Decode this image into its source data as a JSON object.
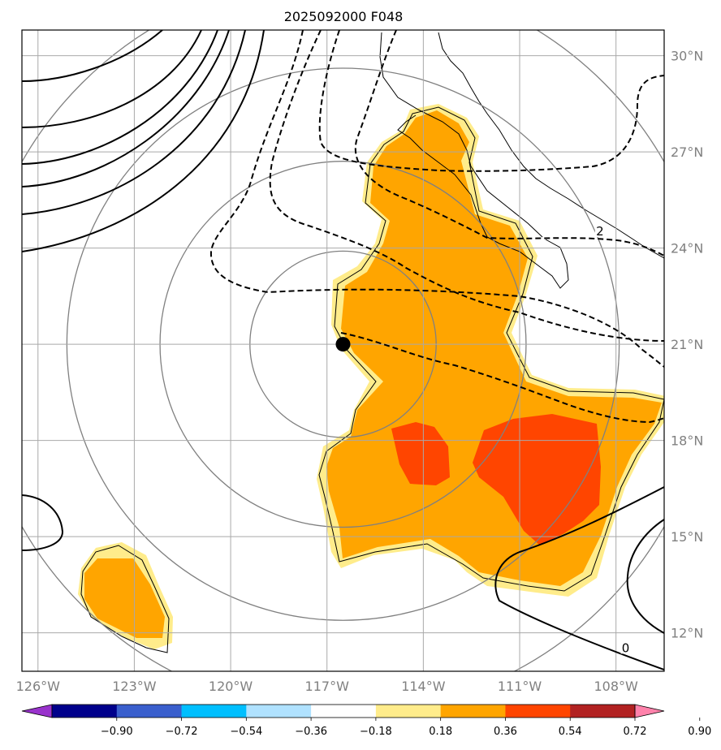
{
  "title": "2025092000 F048",
  "map": {
    "lon_range": [
      -126.5,
      -106.5
    ],
    "lat_range": [
      10.8,
      30.8
    ],
    "lon_ticks": [
      {
        "value": -126,
        "label": "126°W"
      },
      {
        "value": -123,
        "label": "123°W"
      },
      {
        "value": -120,
        "label": "120°W"
      },
      {
        "value": -117,
        "label": "117°W"
      },
      {
        "value": -114,
        "label": "114°W"
      },
      {
        "value": -111,
        "label": "111°W"
      },
      {
        "value": -108,
        "label": "108°W"
      }
    ],
    "lat_ticks": [
      {
        "value": 30,
        "label": "30°N"
      },
      {
        "value": 27,
        "label": "27°N"
      },
      {
        "value": 24,
        "label": "24°N"
      },
      {
        "value": 21,
        "label": "21°N"
      },
      {
        "value": 18,
        "label": "18°N"
      },
      {
        "value": 15,
        "label": "15°N"
      },
      {
        "value": 12,
        "label": "12°N"
      }
    ],
    "gridlines": true,
    "storm_center": {
      "lon": -116.5,
      "lat": 21.0
    },
    "range_rings_deg": [
      2.9,
      5.7,
      8.6,
      11.5
    ],
    "contour_labels": [
      {
        "text": "2",
        "lon": -108.5,
        "lat": 24.5
      },
      {
        "text": "0",
        "lon": -107.7,
        "lat": 11.5
      }
    ]
  },
  "colorbar": {
    "ticks": [
      "−0.90",
      "−0.72",
      "−0.54",
      "−0.36",
      "−0.18",
      "0.18",
      "0.36",
      "0.54",
      "0.72",
      "0.90"
    ],
    "colors": [
      "#9932cc",
      "#00008b",
      "#3a5fcd",
      "#00bfff",
      "#b0e2ff",
      "#ffffff",
      "#ffec8b",
      "#ffa500",
      "#ff4500",
      "#b22222",
      "#ff82ab"
    ]
  },
  "shading_colors": {
    "light": "#ffec8b",
    "orange": "#ffa500",
    "red": "#ff4500"
  }
}
